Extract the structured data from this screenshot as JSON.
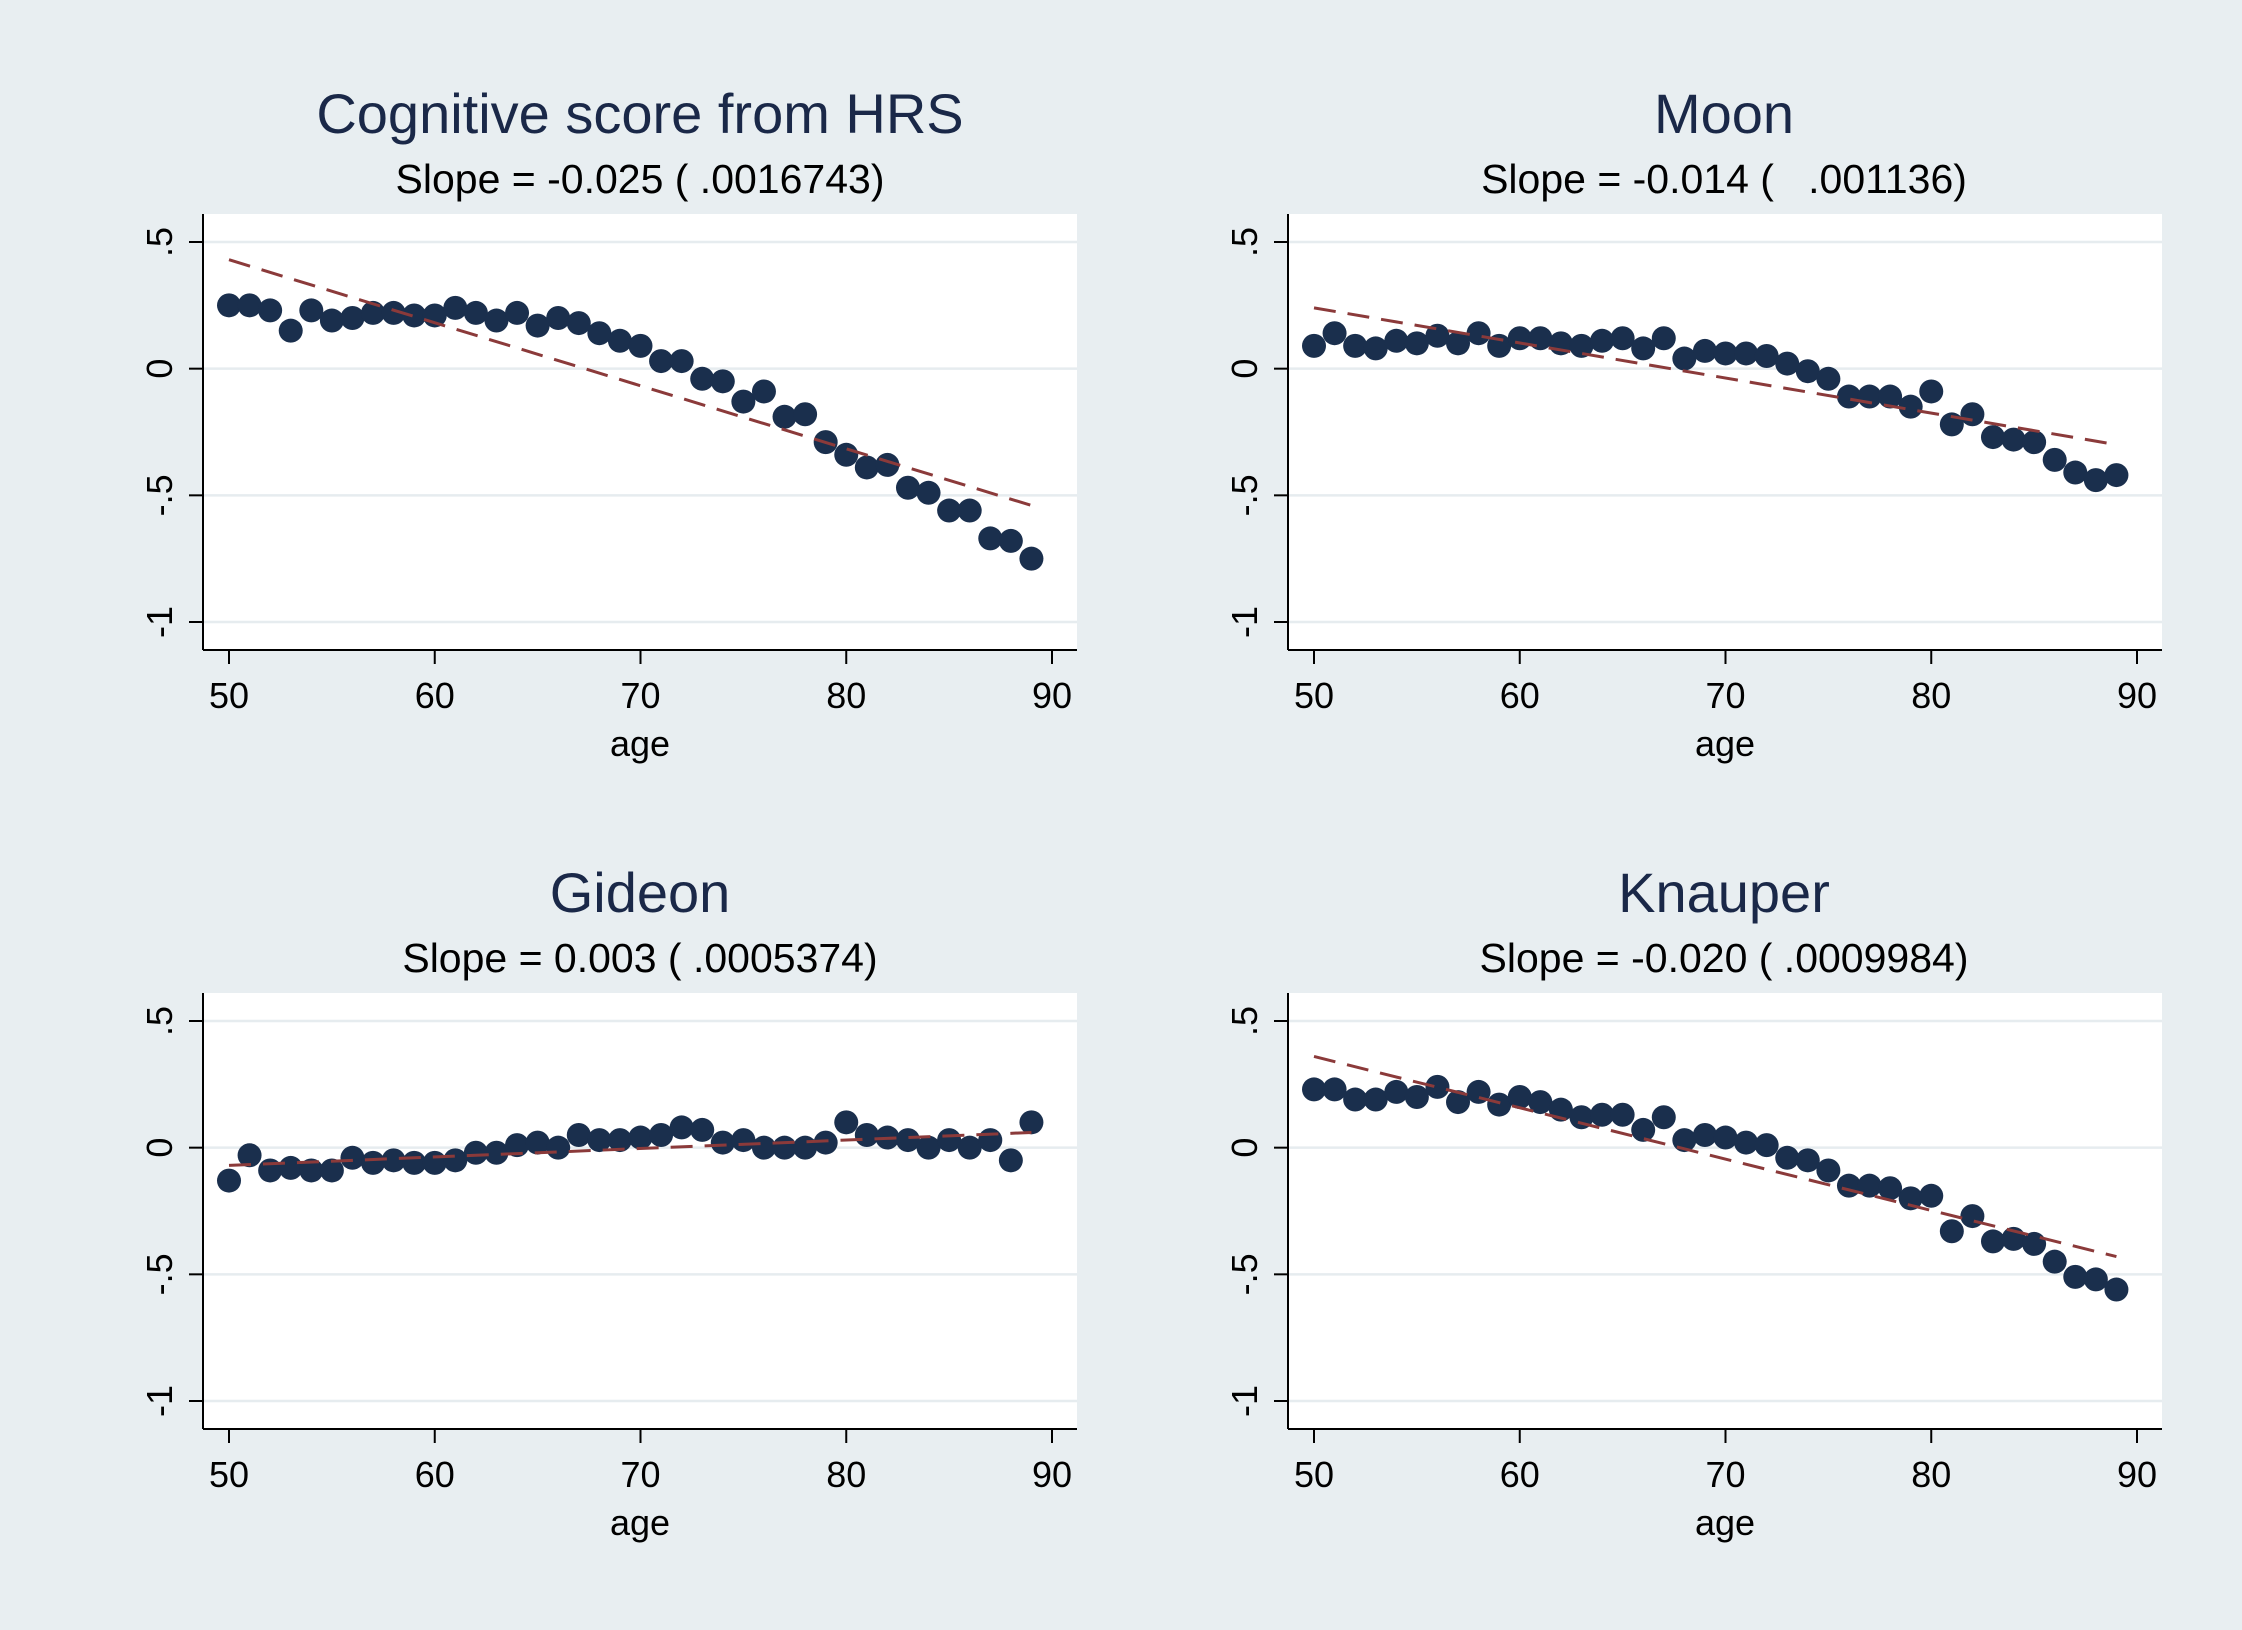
{
  "colors": {
    "background": "#e8eef1",
    "plot_background": "#ffffff",
    "gridline": "#e6ecef",
    "marker": "#1a2f4d",
    "fit_line": "#8b3a3a",
    "title": "#1a2848"
  },
  "chart_data": [
    {
      "type": "scatter",
      "title": "Cognitive score from HRS",
      "subtitle": "Slope = -0.025 ( .0016743)",
      "xlabel": "age",
      "ylabel": "",
      "xlim": [
        50,
        90
      ],
      "ylim": [
        -1,
        0.5
      ],
      "xticks": [
        50,
        60,
        70,
        80,
        90
      ],
      "xtick_labels": [
        "50",
        "60",
        "70",
        "80",
        "90"
      ],
      "yticks": [
        -1,
        -0.5,
        0,
        0.5
      ],
      "ytick_labels": [
        "-1",
        "-.5",
        "0",
        ".5"
      ],
      "grid": true,
      "x": [
        50,
        51,
        52,
        53,
        54,
        55,
        56,
        57,
        58,
        59,
        60,
        61,
        62,
        63,
        64,
        65,
        66,
        67,
        68,
        69,
        70,
        71,
        72,
        73,
        74,
        75,
        76,
        77,
        78,
        79,
        80,
        81,
        82,
        83,
        84,
        85,
        86,
        87,
        88,
        89
      ],
      "y": [
        0.25,
        0.25,
        0.23,
        0.15,
        0.23,
        0.19,
        0.2,
        0.22,
        0.22,
        0.21,
        0.21,
        0.24,
        0.22,
        0.19,
        0.22,
        0.17,
        0.2,
        0.18,
        0.14,
        0.11,
        0.09,
        0.03,
        0.03,
        -0.04,
        -0.05,
        -0.13,
        -0.09,
        -0.19,
        -0.18,
        -0.29,
        -0.34,
        -0.39,
        -0.38,
        -0.47,
        -0.49,
        -0.56,
        -0.56,
        -0.67,
        -0.68,
        -0.75
      ],
      "fit": {
        "x": [
          50,
          89
        ],
        "y": [
          0.43,
          -0.54
        ]
      }
    },
    {
      "type": "scatter",
      "title": "Moon",
      "subtitle": "Slope = -0.014 (   .001136)",
      "xlabel": "age",
      "ylabel": "",
      "xlim": [
        50,
        90
      ],
      "ylim": [
        -1,
        0.5
      ],
      "xticks": [
        50,
        60,
        70,
        80,
        90
      ],
      "xtick_labels": [
        "50",
        "60",
        "70",
        "80",
        "90"
      ],
      "yticks": [
        -1,
        -0.5,
        0,
        0.5
      ],
      "ytick_labels": [
        "-1",
        "-.5",
        "0",
        ".5"
      ],
      "grid": true,
      "x": [
        50,
        51,
        52,
        53,
        54,
        55,
        56,
        57,
        58,
        59,
        60,
        61,
        62,
        63,
        64,
        65,
        66,
        67,
        68,
        69,
        70,
        71,
        72,
        73,
        74,
        75,
        76,
        77,
        78,
        79,
        80,
        81,
        82,
        83,
        84,
        85,
        86,
        87,
        88,
        89
      ],
      "y": [
        0.09,
        0.14,
        0.09,
        0.08,
        0.11,
        0.1,
        0.13,
        0.1,
        0.14,
        0.09,
        0.12,
        0.12,
        0.1,
        0.09,
        0.11,
        0.12,
        0.08,
        0.12,
        0.04,
        0.07,
        0.06,
        0.06,
        0.05,
        0.02,
        -0.01,
        -0.04,
        -0.11,
        -0.11,
        -0.11,
        -0.15,
        -0.09,
        -0.22,
        -0.18,
        -0.27,
        -0.28,
        -0.29,
        -0.36,
        -0.41,
        -0.44,
        -0.42
      ],
      "fit": {
        "x": [
          50,
          89
        ],
        "y": [
          0.24,
          -0.3
        ]
      }
    },
    {
      "type": "scatter",
      "title": "Gideon",
      "subtitle": "Slope = 0.003 ( .0005374)",
      "xlabel": "age",
      "ylabel": "",
      "xlim": [
        50,
        90
      ],
      "ylim": [
        -1,
        0.5
      ],
      "xticks": [
        50,
        60,
        70,
        80,
        90
      ],
      "xtick_labels": [
        "50",
        "60",
        "70",
        "80",
        "90"
      ],
      "yticks": [
        -1,
        -0.5,
        0,
        0.5
      ],
      "ytick_labels": [
        "-1",
        "-.5",
        "0",
        ".5"
      ],
      "grid": true,
      "x": [
        50,
        51,
        52,
        53,
        54,
        55,
        56,
        57,
        58,
        59,
        60,
        61,
        62,
        63,
        64,
        65,
        66,
        67,
        68,
        69,
        70,
        71,
        72,
        73,
        74,
        75,
        76,
        77,
        78,
        79,
        80,
        81,
        82,
        83,
        84,
        85,
        86,
        87,
        88,
        89
      ],
      "y": [
        -0.13,
        -0.03,
        -0.09,
        -0.08,
        -0.09,
        -0.09,
        -0.04,
        -0.06,
        -0.05,
        -0.06,
        -0.06,
        -0.05,
        -0.02,
        -0.02,
        0.01,
        0.02,
        0.0,
        0.05,
        0.03,
        0.03,
        0.04,
        0.05,
        0.08,
        0.07,
        0.02,
        0.03,
        0.0,
        0.0,
        0.0,
        0.02,
        0.1,
        0.05,
        0.04,
        0.03,
        0.0,
        0.03,
        0.0,
        0.03,
        -0.05,
        0.1
      ],
      "fit": {
        "x": [
          50,
          89
        ],
        "y": [
          -0.07,
          0.06
        ]
      }
    },
    {
      "type": "scatter",
      "title": "Knauper",
      "subtitle": "Slope = -0.020 ( .0009984)",
      "xlabel": "age",
      "ylabel": "",
      "xlim": [
        50,
        90
      ],
      "ylim": [
        -1,
        0.5
      ],
      "xticks": [
        50,
        60,
        70,
        80,
        90
      ],
      "xtick_labels": [
        "50",
        "60",
        "70",
        "80",
        "90"
      ],
      "yticks": [
        -1,
        -0.5,
        0,
        0.5
      ],
      "ytick_labels": [
        "-1",
        "-.5",
        "0",
        ".5"
      ],
      "grid": true,
      "x": [
        50,
        51,
        52,
        53,
        54,
        55,
        56,
        57,
        58,
        59,
        60,
        61,
        62,
        63,
        64,
        65,
        66,
        67,
        68,
        69,
        70,
        71,
        72,
        73,
        74,
        75,
        76,
        77,
        78,
        79,
        80,
        81,
        82,
        83,
        84,
        85,
        86,
        87,
        88,
        89
      ],
      "y": [
        0.23,
        0.23,
        0.19,
        0.19,
        0.22,
        0.2,
        0.24,
        0.18,
        0.22,
        0.17,
        0.2,
        0.18,
        0.15,
        0.12,
        0.13,
        0.13,
        0.07,
        0.12,
        0.03,
        0.05,
        0.04,
        0.02,
        0.01,
        -0.04,
        -0.05,
        -0.09,
        -0.15,
        -0.15,
        -0.16,
        -0.2,
        -0.19,
        -0.33,
        -0.27,
        -0.37,
        -0.36,
        -0.38,
        -0.45,
        -0.51,
        -0.52,
        -0.56
      ],
      "fit": {
        "x": [
          50,
          89
        ],
        "y": [
          0.36,
          -0.43
        ]
      }
    }
  ]
}
